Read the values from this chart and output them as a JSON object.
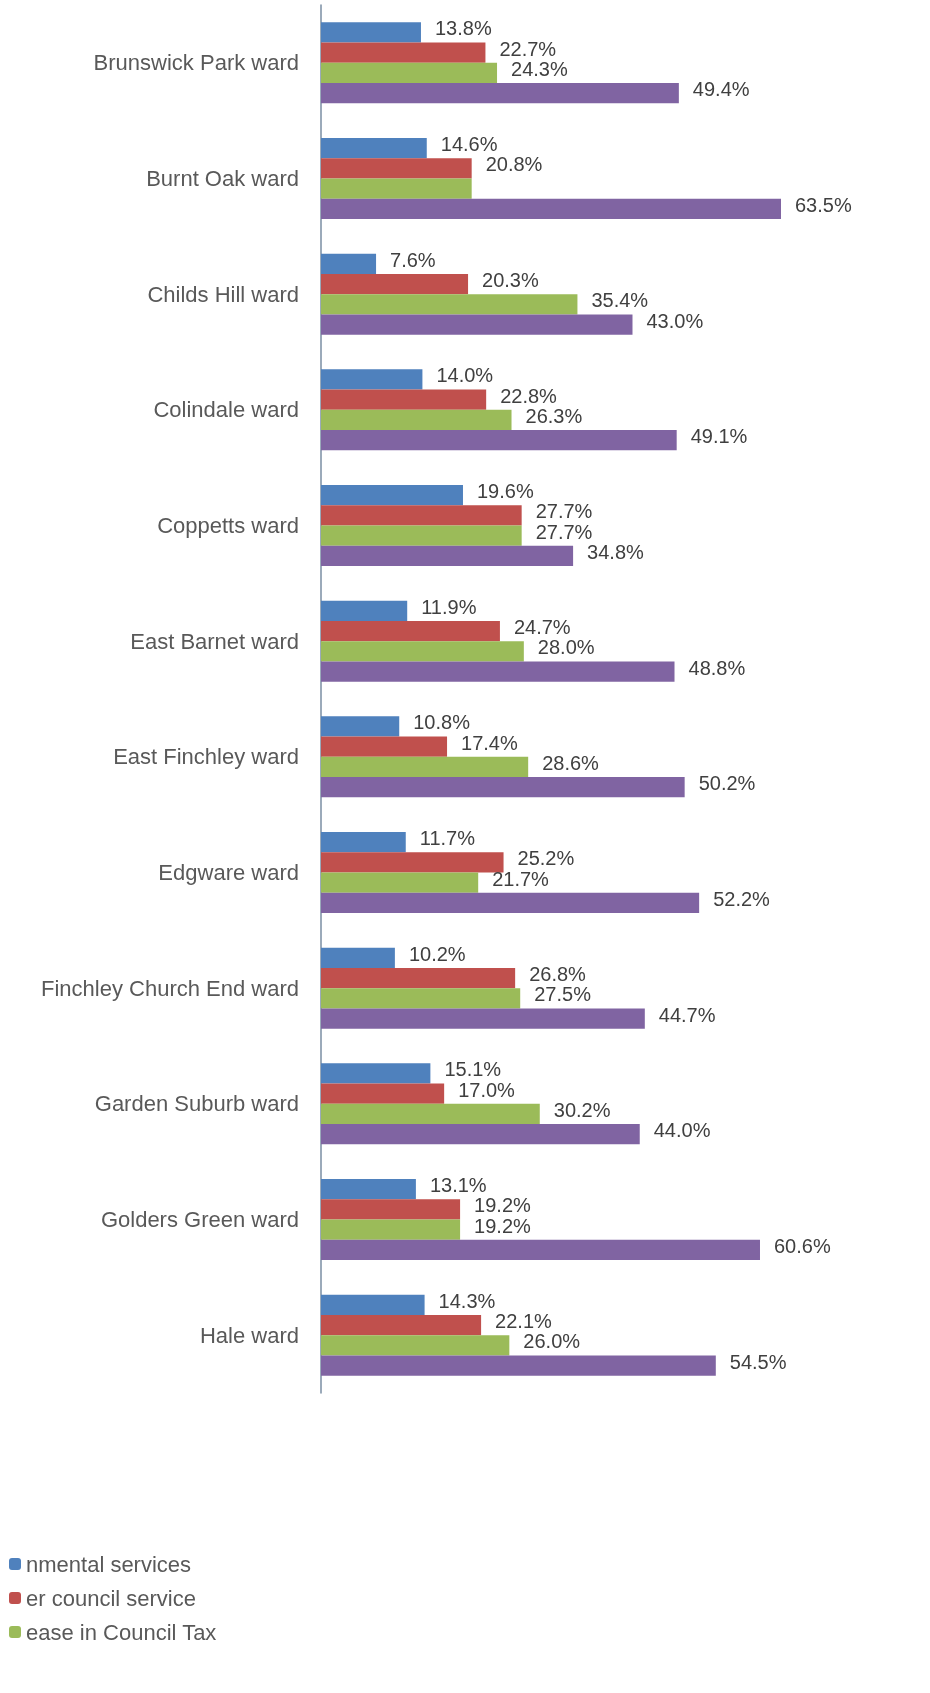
{
  "chart_data": {
    "type": "bar",
    "orientation": "horizontal",
    "categories": [
      "Brunswick Park ward",
      "Burnt Oak ward",
      "Childs Hill ward",
      "Colindale ward",
      "Coppetts ward",
      "East Barnet ward",
      "East Finchley ward",
      "Edgware ward",
      "Finchley Church End ward",
      "Garden Suburb ward",
      "Golders Green ward",
      "Hale ward"
    ],
    "series": [
      {
        "name": "nmental services",
        "color": "#4f81bd",
        "values": [
          13.8,
          14.6,
          7.6,
          14.0,
          19.6,
          11.9,
          10.8,
          11.7,
          10.2,
          15.1,
          13.1,
          14.3
        ],
        "value_labels": [
          "13.8%",
          "14.6%",
          "7.6%",
          "14.0%",
          "19.6%",
          "11.9%",
          "10.8%",
          "11.7%",
          "10.2%",
          "15.1%",
          "13.1%",
          "14.3%"
        ]
      },
      {
        "name": "er council service",
        "color": "#c0504d",
        "values": [
          22.7,
          20.8,
          20.3,
          22.8,
          27.7,
          24.7,
          17.4,
          25.2,
          26.8,
          17.0,
          19.2,
          22.1
        ],
        "value_labels": [
          "22.7%",
          "20.8%",
          "20.3%",
          "22.8%",
          "27.7%",
          "24.7%",
          "17.4%",
          "25.2%",
          "26.8%",
          "17.0%",
          "19.2%",
          "22.1%"
        ]
      },
      {
        "name": "ease in Council Tax",
        "color": "#9bbb59",
        "values": [
          24.3,
          20.8,
          35.4,
          26.3,
          27.7,
          28.0,
          28.6,
          21.7,
          27.5,
          30.2,
          19.2,
          26.0
        ],
        "value_labels": [
          "24.3%",
          null,
          "35.4%",
          "26.3%",
          "27.7%",
          "28.0%",
          "28.6%",
          "21.7%",
          "27.5%",
          "30.2%",
          "19.2%",
          "26.0%"
        ]
      },
      {
        "color": "#8064a2",
        "values": [
          49.4,
          63.5,
          43.0,
          49.1,
          34.8,
          48.8,
          50.2,
          52.2,
          44.7,
          44.0,
          60.6,
          54.5
        ],
        "value_labels": [
          "49.4%",
          "63.5%",
          "43.0%",
          "49.1%",
          "34.8%",
          "48.8%",
          "50.2%",
          "52.2%",
          "44.7%",
          "44.0%",
          "60.6%",
          "54.5%"
        ]
      }
    ],
    "legend": "bottom left"
  }
}
